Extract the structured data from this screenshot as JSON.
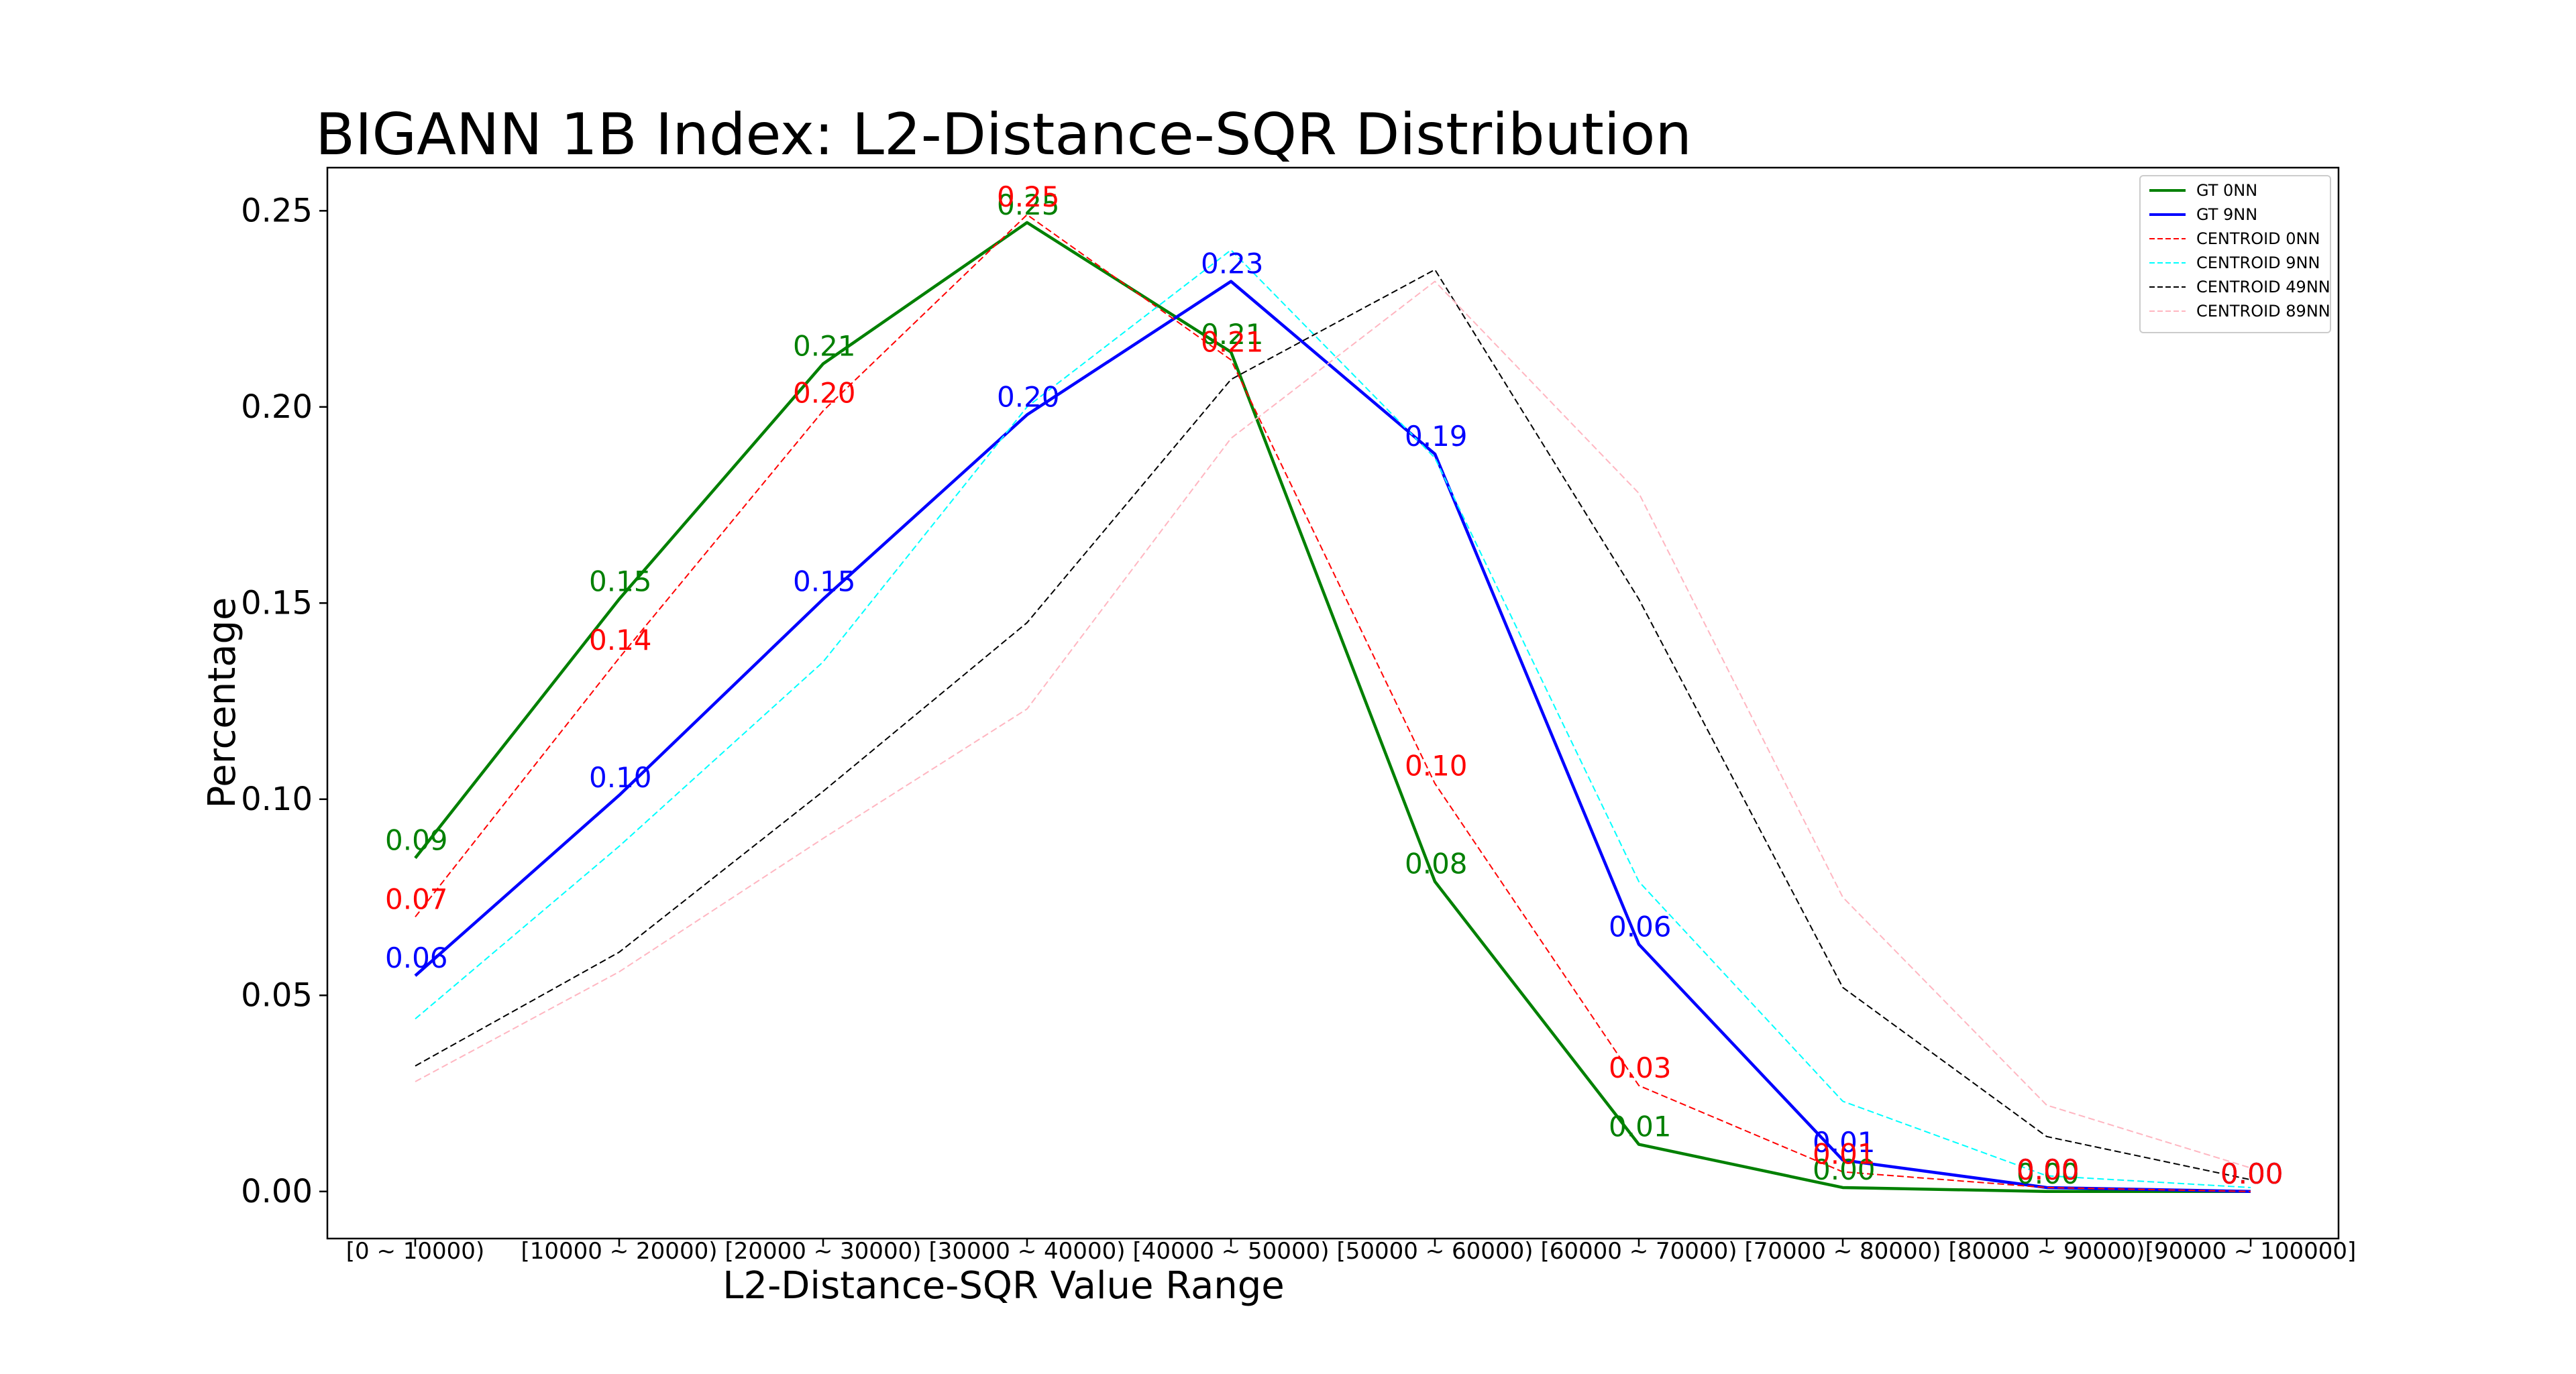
{
  "chart_data": {
    "type": "line",
    "title": "BIGANN 1B Index: L2-Distance-SQR Distribution",
    "xlabel": "L2-Distance-SQR Value Range",
    "ylabel": "Percentage",
    "categories": [
      "[0 ~ 10000)",
      "[10000 ~ 20000)",
      "[20000 ~ 30000)",
      "[30000 ~ 40000)",
      "[40000 ~ 50000)",
      "[50000 ~ 60000)",
      "[60000 ~ 70000)",
      "[70000 ~ 80000)",
      "[80000 ~ 90000)",
      "[90000 ~ 100000]"
    ],
    "ylim": [
      -0.012,
      0.261
    ],
    "yticks": [
      "0.00",
      "0.05",
      "0.10",
      "0.15",
      "0.20",
      "0.25"
    ],
    "legend_position": "top-right",
    "grid": false,
    "series": [
      {
        "name": "GT 0NN",
        "color": "#008000",
        "style": "solid",
        "values": [
          0.085,
          0.151,
          0.211,
          0.247,
          0.214,
          0.079,
          0.012,
          0.001,
          0.0,
          0.0
        ],
        "labels": [
          "0.09",
          "0.15",
          "0.21",
          "0.25",
          "0.21",
          "0.08",
          "0.01",
          "0.00",
          "0.00",
          "0.00"
        ]
      },
      {
        "name": "GT 9NN",
        "color": "#0000ff",
        "style": "solid",
        "values": [
          0.055,
          0.101,
          0.151,
          0.198,
          0.232,
          0.188,
          0.063,
          0.008,
          0.001,
          0.0
        ],
        "labels": [
          "0.06",
          "0.10",
          "0.15",
          "0.20",
          "0.23",
          "0.19",
          "0.06",
          "0.01",
          "0.00",
          "0.00"
        ]
      },
      {
        "name": "CENTROID 0NN",
        "color": "#ff0000",
        "style": "dashed",
        "values": [
          0.07,
          0.136,
          0.199,
          0.249,
          0.212,
          0.104,
          0.027,
          0.005,
          0.001,
          0.0
        ],
        "labels": [
          "0.07",
          "0.14",
          "0.20",
          "0.25",
          "0.21",
          "0.10",
          "0.03",
          "0.01",
          "0.00",
          "0.00"
        ]
      },
      {
        "name": "CENTROID 9NN",
        "color": "#00ffff",
        "style": "dashed",
        "values": [
          0.044,
          0.088,
          0.135,
          0.2,
          0.24,
          0.187,
          0.079,
          0.023,
          0.004,
          0.001
        ]
      },
      {
        "name": "CENTROID 49NN",
        "color": "#000000",
        "style": "dashed",
        "values": [
          0.032,
          0.061,
          0.102,
          0.145,
          0.207,
          0.235,
          0.151,
          0.052,
          0.014,
          0.003
        ]
      },
      {
        "name": "CENTROID 89NN",
        "color": "#ffb6c1",
        "style": "dashed",
        "values": [
          0.028,
          0.056,
          0.09,
          0.123,
          0.192,
          0.232,
          0.178,
          0.075,
          0.022,
          0.006
        ]
      }
    ]
  }
}
